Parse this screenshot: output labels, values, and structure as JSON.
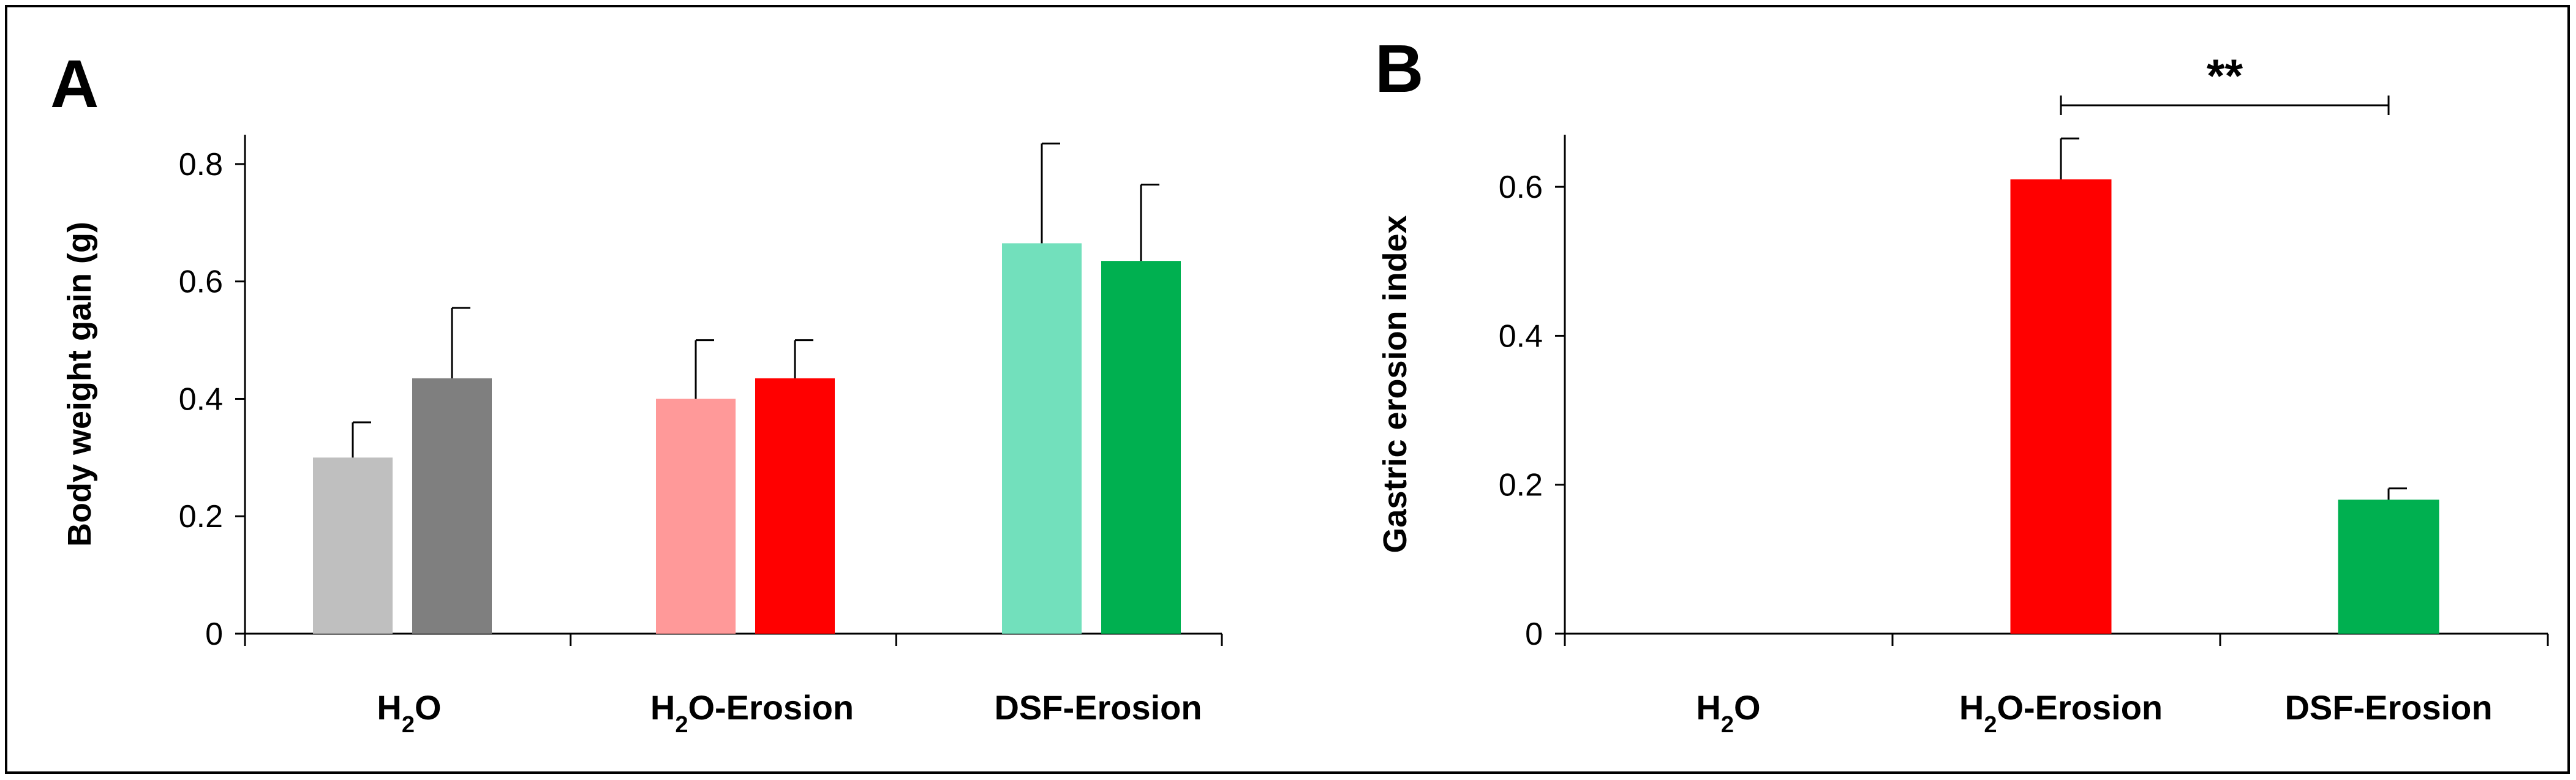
{
  "chart_data": [
    {
      "panel_label": "A",
      "type": "bar",
      "ylabel": "Body weight gain (g)",
      "ylim": [
        0,
        0.85
      ],
      "yticks": [
        "0",
        "0.2",
        "0.4",
        "0.6",
        "0.8"
      ],
      "ytick_values": [
        0,
        0.2,
        0.4,
        0.6,
        0.8
      ],
      "categories": [
        {
          "main": "H",
          "sub": "2",
          "rest": "O"
        },
        {
          "main": "H",
          "sub": "2",
          "rest": "O-Erosion"
        },
        {
          "main": "DSF-Erosion",
          "sub": "",
          "rest": ""
        }
      ],
      "bars": [
        {
          "category_index": 0,
          "value": 0.3,
          "error": 0.06,
          "color": "#bfbfbf"
        },
        {
          "category_index": 0,
          "value": 0.435,
          "error": 0.12,
          "color": "#7f7f7f"
        },
        {
          "category_index": 1,
          "value": 0.4,
          "error": 0.1,
          "color": "#ff9999"
        },
        {
          "category_index": 1,
          "value": 0.435,
          "error": 0.065,
          "color": "#ff0000"
        },
        {
          "category_index": 2,
          "value": 0.665,
          "error": 0.17,
          "color": "#72e0bc"
        },
        {
          "category_index": 2,
          "value": 0.635,
          "error": 0.13,
          "color": "#00b050"
        }
      ]
    },
    {
      "panel_label": "B",
      "type": "bar",
      "ylabel": "Gastric erosion index",
      "ylim": [
        0,
        0.67
      ],
      "yticks": [
        "0",
        "0.2",
        "0.4",
        "0.6"
      ],
      "ytick_values": [
        0,
        0.2,
        0.4,
        0.6
      ],
      "categories": [
        {
          "main": "H",
          "sub": "2",
          "rest": "O"
        },
        {
          "main": "H",
          "sub": "2",
          "rest": "O-Erosion"
        },
        {
          "main": "DSF-Erosion",
          "sub": "",
          "rest": ""
        }
      ],
      "bars": [
        {
          "category_index": 1,
          "value": 0.61,
          "error": 0.055,
          "color": "#ff0000"
        },
        {
          "category_index": 2,
          "value": 0.18,
          "error": 0.015,
          "color": "#00b050"
        }
      ],
      "significance": {
        "label": "**",
        "from_category": 1,
        "to_category": 2
      }
    }
  ]
}
